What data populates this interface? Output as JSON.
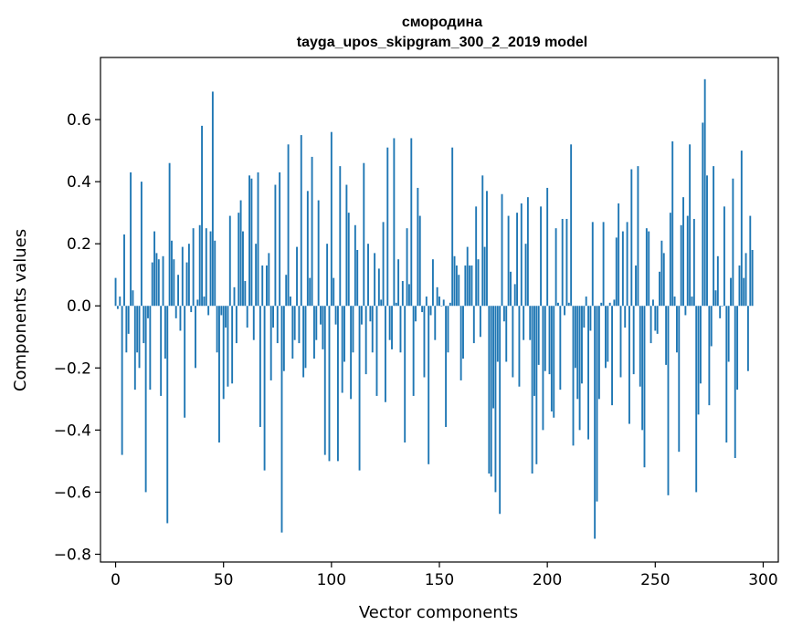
{
  "chart_data": {
    "type": "bar",
    "title": "смородина",
    "subtitle": "tayga_upos_skipgram_300_2_2019 model",
    "xlabel": "Vector components",
    "ylabel": "Components values",
    "xlim": [
      -7,
      307
    ],
    "ylim": [
      -0.825,
      0.8
    ],
    "xticks": [
      0,
      50,
      100,
      150,
      200,
      250,
      300
    ],
    "yticks": [
      -0.8,
      -0.6,
      -0.4,
      -0.2,
      0.0,
      0.2,
      0.4,
      0.6
    ],
    "ytick_labels": [
      "−0.8",
      "−0.6",
      "−0.4",
      "−0.2",
      "0.0",
      "0.2",
      "0.4",
      "0.6"
    ],
    "bar_color": "#1f77b4",
    "grid": false,
    "legend": "none",
    "x_start": 0,
    "values": [
      0.09,
      -0.01,
      0.03,
      -0.48,
      0.23,
      -0.15,
      -0.09,
      0.43,
      0.05,
      -0.27,
      -0.15,
      -0.2,
      0.4,
      -0.12,
      -0.6,
      -0.04,
      -0.27,
      0.14,
      0.24,
      0.17,
      0.15,
      -0.29,
      0.16,
      -0.17,
      -0.7,
      0.46,
      0.21,
      0.15,
      -0.04,
      0.1,
      -0.08,
      0.19,
      -0.36,
      0.14,
      0.2,
      -0.02,
      0.25,
      -0.2,
      0.02,
      0.26,
      0.58,
      0.03,
      0.25,
      -0.03,
      0.24,
      0.69,
      0.21,
      -0.15,
      -0.44,
      -0.03,
      -0.3,
      -0.07,
      -0.26,
      0.29,
      -0.25,
      0.06,
      -0.12,
      0.3,
      0.34,
      0.24,
      0.08,
      -0.07,
      0.42,
      0.41,
      -0.11,
      0.2,
      0.43,
      -0.39,
      0.13,
      -0.53,
      0.13,
      0.17,
      -0.24,
      -0.07,
      0.39,
      -0.12,
      0.43,
      -0.73,
      -0.21,
      0.1,
      0.52,
      0.03,
      -0.17,
      -0.11,
      0.19,
      -0.12,
      0.55,
      -0.23,
      -0.2,
      0.37,
      0.09,
      0.48,
      -0.17,
      -0.11,
      0.34,
      -0.06,
      -0.14,
      -0.48,
      0.2,
      -0.5,
      0.56,
      0.09,
      -0.06,
      -0.5,
      0.45,
      -0.28,
      -0.18,
      0.39,
      0.3,
      -0.3,
      -0.15,
      0.26,
      0.18,
      -0.53,
      -0.06,
      0.46,
      -0.22,
      0.2,
      -0.05,
      -0.15,
      0.17,
      -0.29,
      0.12,
      0.02,
      0.27,
      -0.31,
      0.51,
      -0.11,
      -0.14,
      0.54,
      0.01,
      0.15,
      -0.15,
      0.08,
      -0.44,
      0.25,
      0.07,
      0.54,
      -0.29,
      -0.05,
      0.38,
      0.29,
      -0.02,
      -0.23,
      0.03,
      -0.51,
      -0.03,
      0.15,
      -0.11,
      0.06,
      0.03,
      0.0,
      0.02,
      -0.39,
      -0.15,
      0.01,
      0.51,
      0.16,
      0.13,
      0.1,
      -0.24,
      -0.17,
      0.13,
      0.19,
      0.13,
      0.13,
      -0.12,
      0.32,
      0.15,
      -0.1,
      0.42,
      0.19,
      0.37,
      -0.54,
      -0.55,
      -0.33,
      -0.6,
      -0.18,
      -0.67,
      0.36,
      -0.05,
      -0.18,
      0.29,
      0.11,
      -0.23,
      0.07,
      0.3,
      -0.26,
      0.33,
      -0.11,
      0.2,
      0.35,
      -0.11,
      -0.54,
      -0.29,
      -0.51,
      -0.19,
      0.32,
      -0.4,
      -0.21,
      0.38,
      -0.22,
      -0.34,
      -0.36,
      0.25,
      0.01,
      -0.27,
      0.28,
      -0.03,
      0.28,
      0.01,
      0.52,
      -0.45,
      -0.2,
      -0.3,
      -0.4,
      -0.25,
      -0.07,
      0.03,
      -0.43,
      -0.08,
      0.27,
      -0.75,
      -0.63,
      -0.3,
      0.01,
      0.27,
      -0.2,
      -0.18,
      0.01,
      -0.32,
      0.02,
      0.22,
      0.33,
      -0.23,
      0.24,
      -0.07,
      0.27,
      -0.38,
      0.44,
      -0.22,
      0.13,
      0.45,
      -0.26,
      -0.4,
      -0.52,
      0.25,
      0.24,
      -0.12,
      0.02,
      -0.08,
      -0.09,
      0.11,
      0.21,
      0.17,
      -0.19,
      -0.61,
      0.3,
      0.53,
      0.03,
      -0.15,
      -0.47,
      0.26,
      0.35,
      -0.03,
      0.29,
      0.52,
      0.03,
      0.28,
      -0.6,
      -0.35,
      -0.25,
      0.59,
      0.73,
      0.42,
      -0.32,
      -0.13,
      0.45,
      0.05,
      0.16,
      -0.04,
      0.0,
      0.32,
      -0.44,
      -0.18,
      0.09,
      0.41,
      -0.49,
      -0.27,
      0.13,
      0.5,
      0.09,
      0.17,
      -0.21,
      0.29,
      0.18
    ]
  }
}
